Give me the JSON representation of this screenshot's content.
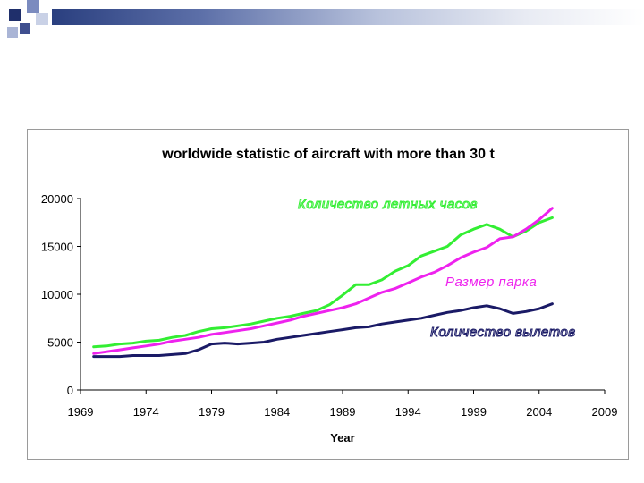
{
  "slide": {
    "decoration_colors": {
      "dark": "#1f2f6b",
      "mid": "#7b8bbf",
      "light": "#c9d1e6"
    }
  },
  "chart_data": {
    "type": "line",
    "title": "worldwide statistic of aircraft with more than 30 t",
    "xlabel": "Year",
    "ylabel": "",
    "xlim": [
      1969,
      2009
    ],
    "ylim": [
      0,
      20000
    ],
    "x_ticks": [
      "1969",
      "1974",
      "1979",
      "1984",
      "1989",
      "1994",
      "1999",
      "2004",
      "2009"
    ],
    "y_ticks": [
      "0",
      "5000",
      "10000",
      "15000",
      "20000"
    ],
    "x": [
      1970,
      1971,
      1972,
      1973,
      1974,
      1975,
      1976,
      1977,
      1978,
      1979,
      1980,
      1981,
      1982,
      1983,
      1984,
      1985,
      1986,
      1987,
      1988,
      1989,
      1990,
      1991,
      1992,
      1993,
      1994,
      1995,
      1996,
      1997,
      1998,
      1999,
      2000,
      2001,
      2002,
      2003,
      2004,
      2005
    ],
    "series": [
      {
        "name": "Количество летных часов",
        "color": "#33ee33",
        "values": [
          4500,
          4600,
          4800,
          4900,
          5100,
          5200,
          5500,
          5700,
          6100,
          6400,
          6500,
          6700,
          6900,
          7200,
          7500,
          7700,
          8000,
          8300,
          8900,
          9900,
          11000,
          11000,
          11500,
          12400,
          13000,
          14000,
          14500,
          15000,
          16200,
          16800,
          17300,
          16800,
          16000,
          16600,
          17500,
          18000
        ]
      },
      {
        "name": "Размер парка",
        "color": "#ee22ee",
        "values": [
          3800,
          4000,
          4200,
          4400,
          4600,
          4800,
          5100,
          5300,
          5500,
          5800,
          6000,
          6200,
          6400,
          6700,
          7000,
          7300,
          7700,
          8000,
          8300,
          8600,
          9000,
          9600,
          10200,
          10600,
          11200,
          11800,
          12300,
          13000,
          13800,
          14400,
          14900,
          15800,
          16000,
          16800,
          17800,
          19000
        ]
      },
      {
        "name": "Количество вылетов",
        "color": "#1a1a66",
        "values": [
          3500,
          3500,
          3500,
          3600,
          3600,
          3600,
          3700,
          3800,
          4200,
          4800,
          4900,
          4800,
          4900,
          5000,
          5300,
          5500,
          5700,
          5900,
          6100,
          6300,
          6500,
          6600,
          6900,
          7100,
          7300,
          7500,
          7800,
          8100,
          8300,
          8600,
          8800,
          8500,
          8000,
          8200,
          8500,
          9000
        ]
      }
    ],
    "annotations": [
      {
        "text": "Количество летных часов",
        "series": 0
      },
      {
        "text": "Размер парка",
        "series": 1
      },
      {
        "text": "Количество вылетов",
        "series": 2
      }
    ],
    "grid": false,
    "legend": "none"
  }
}
